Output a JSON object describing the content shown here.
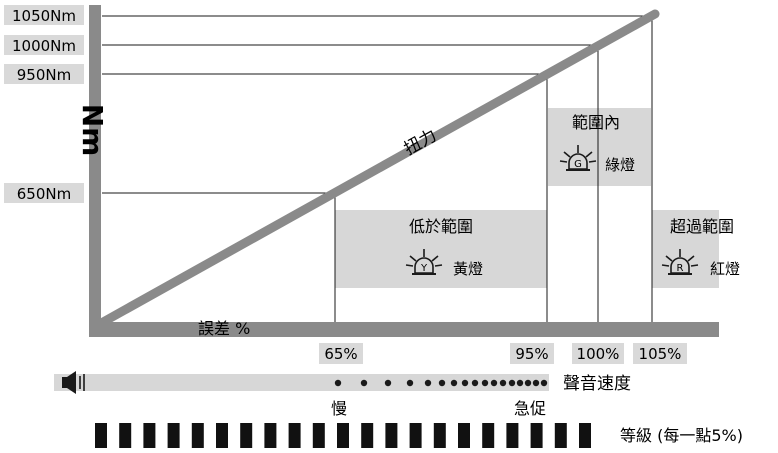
{
  "torque_labels": [
    "1050Nm",
    "1000Nm",
    "950Nm",
    "650Nm"
  ],
  "y_axis_unit": "Nm",
  "diagonal_label": "扭力",
  "x_axis_label": "誤差 %",
  "zones": {
    "low": {
      "title": "低於範圍",
      "lamp_letter": "Y",
      "lamp_label": "黃燈"
    },
    "in": {
      "title": "範圍內",
      "lamp_letter": "G",
      "lamp_label": "綠燈"
    },
    "over": {
      "title": "超過範圍",
      "lamp_letter": "R",
      "lamp_label": "紅燈"
    }
  },
  "percent_labels": [
    "65%",
    "95%",
    "100%",
    "105%"
  ],
  "sound": {
    "speed_label": "聲音速度",
    "slow_label": "慢",
    "fast_label": "急促",
    "speaker_icon": "speaker-icon",
    "dot_count": 17
  },
  "level": {
    "label": "等級 (每一點5%)",
    "bar_count": 21
  },
  "colors": {
    "gray_band": "#d7d7d7",
    "axis_gray": "#8a8a8a",
    "dark": "#1a1a1a",
    "label_bg": "#d9d9d9"
  }
}
